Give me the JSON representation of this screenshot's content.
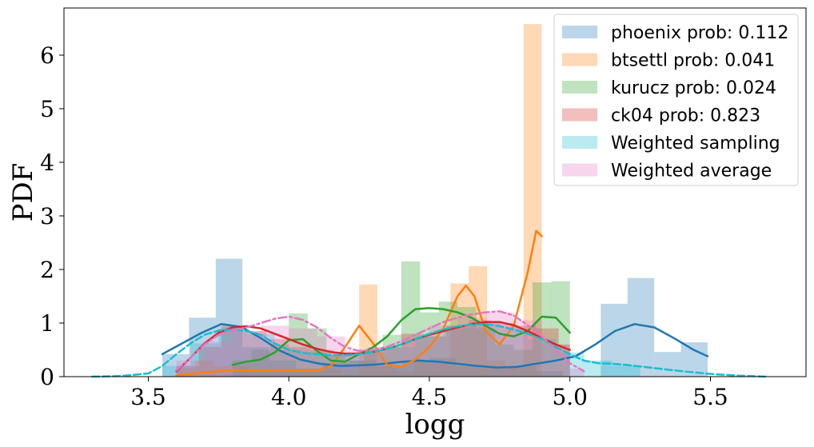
{
  "chart_data": {
    "type": "histogram-kde",
    "xlabel": "logg",
    "ylabel": "PDF",
    "xlim": [
      3.2,
      5.84
    ],
    "ylim": [
      0,
      6.88
    ],
    "xticks": [
      3.5,
      4.0,
      4.5,
      5.0,
      5.5
    ],
    "yticks": [
      0,
      1,
      2,
      3,
      4,
      5,
      6
    ],
    "grid": false,
    "legend_position": "top-right",
    "series": [
      {
        "name": "phoenix prob: 0.112",
        "color": "#1f77b4",
        "line_style": "solid",
        "bins": [
          {
            "x0": 3.55,
            "x1": 3.645,
            "h": 0.42
          },
          {
            "x0": 3.645,
            "x1": 3.74,
            "h": 1.1
          },
          {
            "x0": 3.74,
            "x1": 3.835,
            "h": 2.2
          },
          {
            "x0": 3.835,
            "x1": 3.93,
            "h": 0.55
          },
          {
            "x0": 3.93,
            "x1": 4.025,
            "h": 0.3
          },
          {
            "x0": 4.025,
            "x1": 4.12,
            "h": 0.15
          },
          {
            "x0": 4.12,
            "x1": 4.215,
            "h": 0.25
          },
          {
            "x0": 4.215,
            "x1": 4.31,
            "h": 0.3
          },
          {
            "x0": 4.31,
            "x1": 4.405,
            "h": 0.2
          },
          {
            "x0": 4.405,
            "x1": 4.5,
            "h": 0.3
          },
          {
            "x0": 4.5,
            "x1": 4.595,
            "h": 0.35
          },
          {
            "x0": 4.595,
            "x1": 4.69,
            "h": 0.2
          },
          {
            "x0": 4.69,
            "x1": 4.785,
            "h": 0.15
          },
          {
            "x0": 4.785,
            "x1": 4.88,
            "h": 0.2
          },
          {
            "x0": 4.88,
            "x1": 4.975,
            "h": 0.1
          },
          {
            "x0": 5.11,
            "x1": 5.205,
            "h": 1.36
          },
          {
            "x0": 5.205,
            "x1": 5.3,
            "h": 1.84
          },
          {
            "x0": 5.3,
            "x1": 5.395,
            "h": 0.46
          },
          {
            "x0": 5.395,
            "x1": 5.49,
            "h": 0.64
          }
        ],
        "kde": {
          "x": [
            3.55,
            3.62,
            3.69,
            3.76,
            3.83,
            3.9,
            3.97,
            4.04,
            4.11,
            4.18,
            4.25,
            4.32,
            4.39,
            4.46,
            4.53,
            4.6,
            4.67,
            4.74,
            4.81,
            4.88,
            4.95,
            5.02,
            5.09,
            5.16,
            5.23,
            5.3,
            5.37,
            5.44,
            5.49
          ],
          "y": [
            0.42,
            0.62,
            0.82,
            0.98,
            0.93,
            0.72,
            0.48,
            0.32,
            0.24,
            0.2,
            0.21,
            0.23,
            0.27,
            0.3,
            0.28,
            0.24,
            0.2,
            0.17,
            0.18,
            0.24,
            0.3,
            0.38,
            0.6,
            0.85,
            0.98,
            0.92,
            0.72,
            0.5,
            0.38
          ]
        }
      },
      {
        "name": "btsettl prob: 0.041",
        "color": "#ff7f0e",
        "line_style": "solid",
        "bins": [
          {
            "x0": 3.6,
            "x1": 3.665,
            "h": 0.15
          },
          {
            "x0": 3.665,
            "x1": 3.73,
            "h": 0.3
          },
          {
            "x0": 3.73,
            "x1": 3.795,
            "h": 0.2
          },
          {
            "x0": 3.795,
            "x1": 3.86,
            "h": 0.2
          },
          {
            "x0": 3.86,
            "x1": 3.925,
            "h": 0.1
          },
          {
            "x0": 3.925,
            "x1": 3.99,
            "h": 0.15
          },
          {
            "x0": 3.99,
            "x1": 4.055,
            "h": 0.1
          },
          {
            "x0": 4.055,
            "x1": 4.12,
            "h": 0.1
          },
          {
            "x0": 4.12,
            "x1": 4.185,
            "h": 0.15
          },
          {
            "x0": 4.185,
            "x1": 4.25,
            "h": 0.05
          },
          {
            "x0": 4.25,
            "x1": 4.315,
            "h": 1.72
          },
          {
            "x0": 4.315,
            "x1": 4.38,
            "h": 0.2
          },
          {
            "x0": 4.38,
            "x1": 4.445,
            "h": 0.1
          },
          {
            "x0": 4.445,
            "x1": 4.51,
            "h": 0.3
          },
          {
            "x0": 4.51,
            "x1": 4.575,
            "h": 0.25
          },
          {
            "x0": 4.575,
            "x1": 4.64,
            "h": 1.74
          },
          {
            "x0": 4.64,
            "x1": 4.705,
            "h": 2.06
          },
          {
            "x0": 4.705,
            "x1": 4.77,
            "h": 0.3
          },
          {
            "x0": 4.77,
            "x1": 4.835,
            "h": 0.2
          },
          {
            "x0": 4.835,
            "x1": 4.9,
            "h": 6.58
          }
        ],
        "kde": {
          "x": [
            3.6,
            3.65,
            3.7,
            3.75,
            3.8,
            3.85,
            3.9,
            3.95,
            4.0,
            4.05,
            4.1,
            4.15,
            4.2,
            4.25,
            4.3,
            4.35,
            4.4,
            4.45,
            4.5,
            4.55,
            4.6,
            4.63,
            4.66,
            4.7,
            4.75,
            4.8,
            4.85,
            4.88,
            4.9
          ],
          "y": [
            0.02,
            0.05,
            0.08,
            0.1,
            0.12,
            0.12,
            0.12,
            0.12,
            0.12,
            0.12,
            0.12,
            0.2,
            0.55,
            0.95,
            0.62,
            0.22,
            0.18,
            0.32,
            0.55,
            0.9,
            1.5,
            1.7,
            1.5,
            0.85,
            0.6,
            0.95,
            1.95,
            2.72,
            2.62
          ]
        }
      },
      {
        "name": "kurucz prob: 0.024",
        "color": "#2ca02c",
        "line_style": "solid",
        "bins": [
          {
            "x0": 3.8,
            "x1": 3.867,
            "h": 0.3
          },
          {
            "x0": 3.867,
            "x1": 3.934,
            "h": 0.5
          },
          {
            "x0": 3.934,
            "x1": 4.0,
            "h": 0.6
          },
          {
            "x0": 4.0,
            "x1": 4.067,
            "h": 1.18
          },
          {
            "x0": 4.067,
            "x1": 4.134,
            "h": 0.9
          },
          {
            "x0": 4.134,
            "x1": 4.2,
            "h": 0.4
          },
          {
            "x0": 4.2,
            "x1": 4.267,
            "h": 0.3
          },
          {
            "x0": 4.267,
            "x1": 4.334,
            "h": 0.5
          },
          {
            "x0": 4.334,
            "x1": 4.4,
            "h": 0.78
          },
          {
            "x0": 4.4,
            "x1": 4.467,
            "h": 2.15
          },
          {
            "x0": 4.467,
            "x1": 4.534,
            "h": 1.2
          },
          {
            "x0": 4.534,
            "x1": 4.6,
            "h": 1.4
          },
          {
            "x0": 4.6,
            "x1": 4.667,
            "h": 1.3
          },
          {
            "x0": 4.667,
            "x1": 4.734,
            "h": 0.9
          },
          {
            "x0": 4.734,
            "x1": 4.8,
            "h": 0.6
          },
          {
            "x0": 4.8,
            "x1": 4.867,
            "h": 0.5
          },
          {
            "x0": 4.867,
            "x1": 4.934,
            "h": 1.76
          },
          {
            "x0": 4.934,
            "x1": 5.0,
            "h": 1.78
          }
        ],
        "kde": {
          "x": [
            3.8,
            3.85,
            3.9,
            3.95,
            4.0,
            4.05,
            4.1,
            4.15,
            4.2,
            4.25,
            4.3,
            4.35,
            4.4,
            4.45,
            4.5,
            4.55,
            4.6,
            4.65,
            4.7,
            4.75,
            4.8,
            4.85,
            4.9,
            4.95,
            5.0
          ],
          "y": [
            0.22,
            0.28,
            0.32,
            0.45,
            0.68,
            0.7,
            0.48,
            0.3,
            0.28,
            0.42,
            0.55,
            0.75,
            1.05,
            1.26,
            1.28,
            1.26,
            1.2,
            1.1,
            0.95,
            0.8,
            0.75,
            0.85,
            1.12,
            1.1,
            0.82
          ]
        }
      },
      {
        "name": "ck04 prob: 0.823",
        "color": "#d62728",
        "line_style": "solid",
        "bins": [
          {
            "x0": 3.6,
            "x1": 3.68,
            "h": 0.2
          },
          {
            "x0": 3.68,
            "x1": 3.76,
            "h": 0.55
          },
          {
            "x0": 3.76,
            "x1": 3.84,
            "h": 0.95
          },
          {
            "x0": 3.84,
            "x1": 3.92,
            "h": 0.85
          },
          {
            "x0": 3.92,
            "x1": 4.0,
            "h": 0.7
          },
          {
            "x0": 4.0,
            "x1": 4.08,
            "h": 0.55
          },
          {
            "x0": 4.08,
            "x1": 4.16,
            "h": 0.5
          },
          {
            "x0": 4.16,
            "x1": 4.24,
            "h": 0.45
          },
          {
            "x0": 4.24,
            "x1": 4.32,
            "h": 0.5
          },
          {
            "x0": 4.32,
            "x1": 4.4,
            "h": 0.55
          },
          {
            "x0": 4.4,
            "x1": 4.48,
            "h": 0.8
          },
          {
            "x0": 4.48,
            "x1": 4.56,
            "h": 0.75
          },
          {
            "x0": 4.56,
            "x1": 4.64,
            "h": 0.95
          },
          {
            "x0": 4.64,
            "x1": 4.72,
            "h": 1.05
          },
          {
            "x0": 4.72,
            "x1": 4.8,
            "h": 1.0
          },
          {
            "x0": 4.8,
            "x1": 4.88,
            "h": 0.95
          },
          {
            "x0": 4.88,
            "x1": 4.96,
            "h": 0.9
          },
          {
            "x0": 4.96,
            "x1": 5.0,
            "h": 0.6
          }
        ],
        "kde": {
          "x": [
            3.6,
            3.65,
            3.7,
            3.75,
            3.8,
            3.85,
            3.9,
            3.95,
            4.0,
            4.05,
            4.1,
            4.15,
            4.2,
            4.25,
            4.3,
            4.35,
            4.4,
            4.45,
            4.5,
            4.55,
            4.6,
            4.65,
            4.7,
            4.75,
            4.8,
            4.85,
            4.9,
            4.95,
            5.0
          ],
          "y": [
            0.1,
            0.35,
            0.62,
            0.82,
            0.92,
            0.94,
            0.9,
            0.8,
            0.7,
            0.6,
            0.52,
            0.46,
            0.43,
            0.43,
            0.46,
            0.52,
            0.6,
            0.7,
            0.78,
            0.85,
            0.92,
            0.98,
            1.02,
            1.02,
            0.96,
            0.85,
            0.72,
            0.6,
            0.5
          ]
        }
      },
      {
        "name": "Weighted sampling",
        "color": "#17becf",
        "line_style": "dashed",
        "bins": [
          {
            "x0": 3.55,
            "x1": 3.65,
            "h": 0.2
          },
          {
            "x0": 3.65,
            "x1": 3.75,
            "h": 0.62
          },
          {
            "x0": 3.75,
            "x1": 3.85,
            "h": 0.9
          },
          {
            "x0": 3.85,
            "x1": 3.95,
            "h": 0.8
          },
          {
            "x0": 3.95,
            "x1": 4.05,
            "h": 0.5
          },
          {
            "x0": 4.05,
            "x1": 4.15,
            "h": 0.45
          },
          {
            "x0": 4.15,
            "x1": 4.25,
            "h": 0.4
          },
          {
            "x0": 4.25,
            "x1": 4.35,
            "h": 0.45
          },
          {
            "x0": 4.35,
            "x1": 4.45,
            "h": 0.55
          },
          {
            "x0": 4.45,
            "x1": 4.55,
            "h": 0.75
          },
          {
            "x0": 4.55,
            "x1": 4.65,
            "h": 0.9
          },
          {
            "x0": 4.65,
            "x1": 4.75,
            "h": 1.0
          },
          {
            "x0": 4.75,
            "x1": 4.85,
            "h": 0.9
          },
          {
            "x0": 4.85,
            "x1": 4.95,
            "h": 0.7
          },
          {
            "x0": 4.95,
            "x1": 5.05,
            "h": 0.45
          },
          {
            "x0": 5.05,
            "x1": 5.15,
            "h": 0.3
          },
          {
            "x0": 5.15,
            "x1": 5.25,
            "h": 0.2
          }
        ],
        "kde": {
          "x": [
            3.3,
            3.4,
            3.5,
            3.55,
            3.6,
            3.65,
            3.7,
            3.75,
            3.8,
            3.85,
            3.9,
            3.95,
            4.0,
            4.05,
            4.1,
            4.15,
            4.2,
            4.25,
            4.3,
            4.35,
            4.4,
            4.45,
            4.5,
            4.55,
            4.6,
            4.65,
            4.7,
            4.75,
            4.8,
            4.85,
            4.9,
            4.95,
            5.0,
            5.05,
            5.1,
            5.15,
            5.2,
            5.3,
            5.4,
            5.5,
            5.6,
            5.7
          ],
          "y": [
            0.0,
            0.01,
            0.06,
            0.2,
            0.42,
            0.62,
            0.78,
            0.86,
            0.88,
            0.85,
            0.78,
            0.62,
            0.5,
            0.44,
            0.42,
            0.4,
            0.4,
            0.42,
            0.46,
            0.52,
            0.6,
            0.7,
            0.8,
            0.88,
            0.94,
            0.97,
            0.98,
            0.94,
            0.88,
            0.8,
            0.7,
            0.55,
            0.42,
            0.3,
            0.25,
            0.24,
            0.22,
            0.16,
            0.1,
            0.05,
            0.02,
            0.0
          ]
        }
      },
      {
        "name": "Weighted average",
        "color": "#e377c2",
        "line_style": "dashdot",
        "bins": [
          {
            "x0": 3.6,
            "x1": 3.7,
            "h": 0.3
          },
          {
            "x0": 3.7,
            "x1": 3.8,
            "h": 0.65
          },
          {
            "x0": 3.8,
            "x1": 3.9,
            "h": 0.85
          },
          {
            "x0": 3.9,
            "x1": 4.0,
            "h": 0.95
          },
          {
            "x0": 4.0,
            "x1": 4.1,
            "h": 0.9
          },
          {
            "x0": 4.1,
            "x1": 4.2,
            "h": 0.75
          },
          {
            "x0": 4.2,
            "x1": 4.3,
            "h": 0.5
          },
          {
            "x0": 4.3,
            "x1": 4.4,
            "h": 0.5
          },
          {
            "x0": 4.4,
            "x1": 4.5,
            "h": 0.7
          },
          {
            "x0": 4.5,
            "x1": 4.6,
            "h": 0.95
          },
          {
            "x0": 4.6,
            "x1": 4.7,
            "h": 1.1
          },
          {
            "x0": 4.7,
            "x1": 4.8,
            "h": 1.2
          },
          {
            "x0": 4.8,
            "x1": 4.9,
            "h": 1.05
          },
          {
            "x0": 4.9,
            "x1": 5.0,
            "h": 0.6
          },
          {
            "x0": 5.0,
            "x1": 5.05,
            "h": 0.15
          }
        ],
        "kde": {
          "x": [
            3.6,
            3.65,
            3.7,
            3.75,
            3.8,
            3.85,
            3.9,
            3.95,
            4.0,
            4.05,
            4.1,
            4.15,
            4.2,
            4.25,
            4.3,
            4.35,
            4.4,
            4.45,
            4.5,
            4.55,
            4.6,
            4.65,
            4.7,
            4.75,
            4.8,
            4.85,
            4.9,
            4.95,
            5.0,
            5.05
          ],
          "y": [
            0.12,
            0.35,
            0.6,
            0.78,
            0.86,
            0.92,
            1.0,
            1.08,
            1.12,
            1.06,
            0.92,
            0.72,
            0.55,
            0.48,
            0.5,
            0.56,
            0.66,
            0.78,
            0.9,
            1.02,
            1.1,
            1.16,
            1.2,
            1.22,
            1.14,
            0.96,
            0.75,
            0.5,
            0.25,
            0.1
          ]
        }
      }
    ]
  }
}
